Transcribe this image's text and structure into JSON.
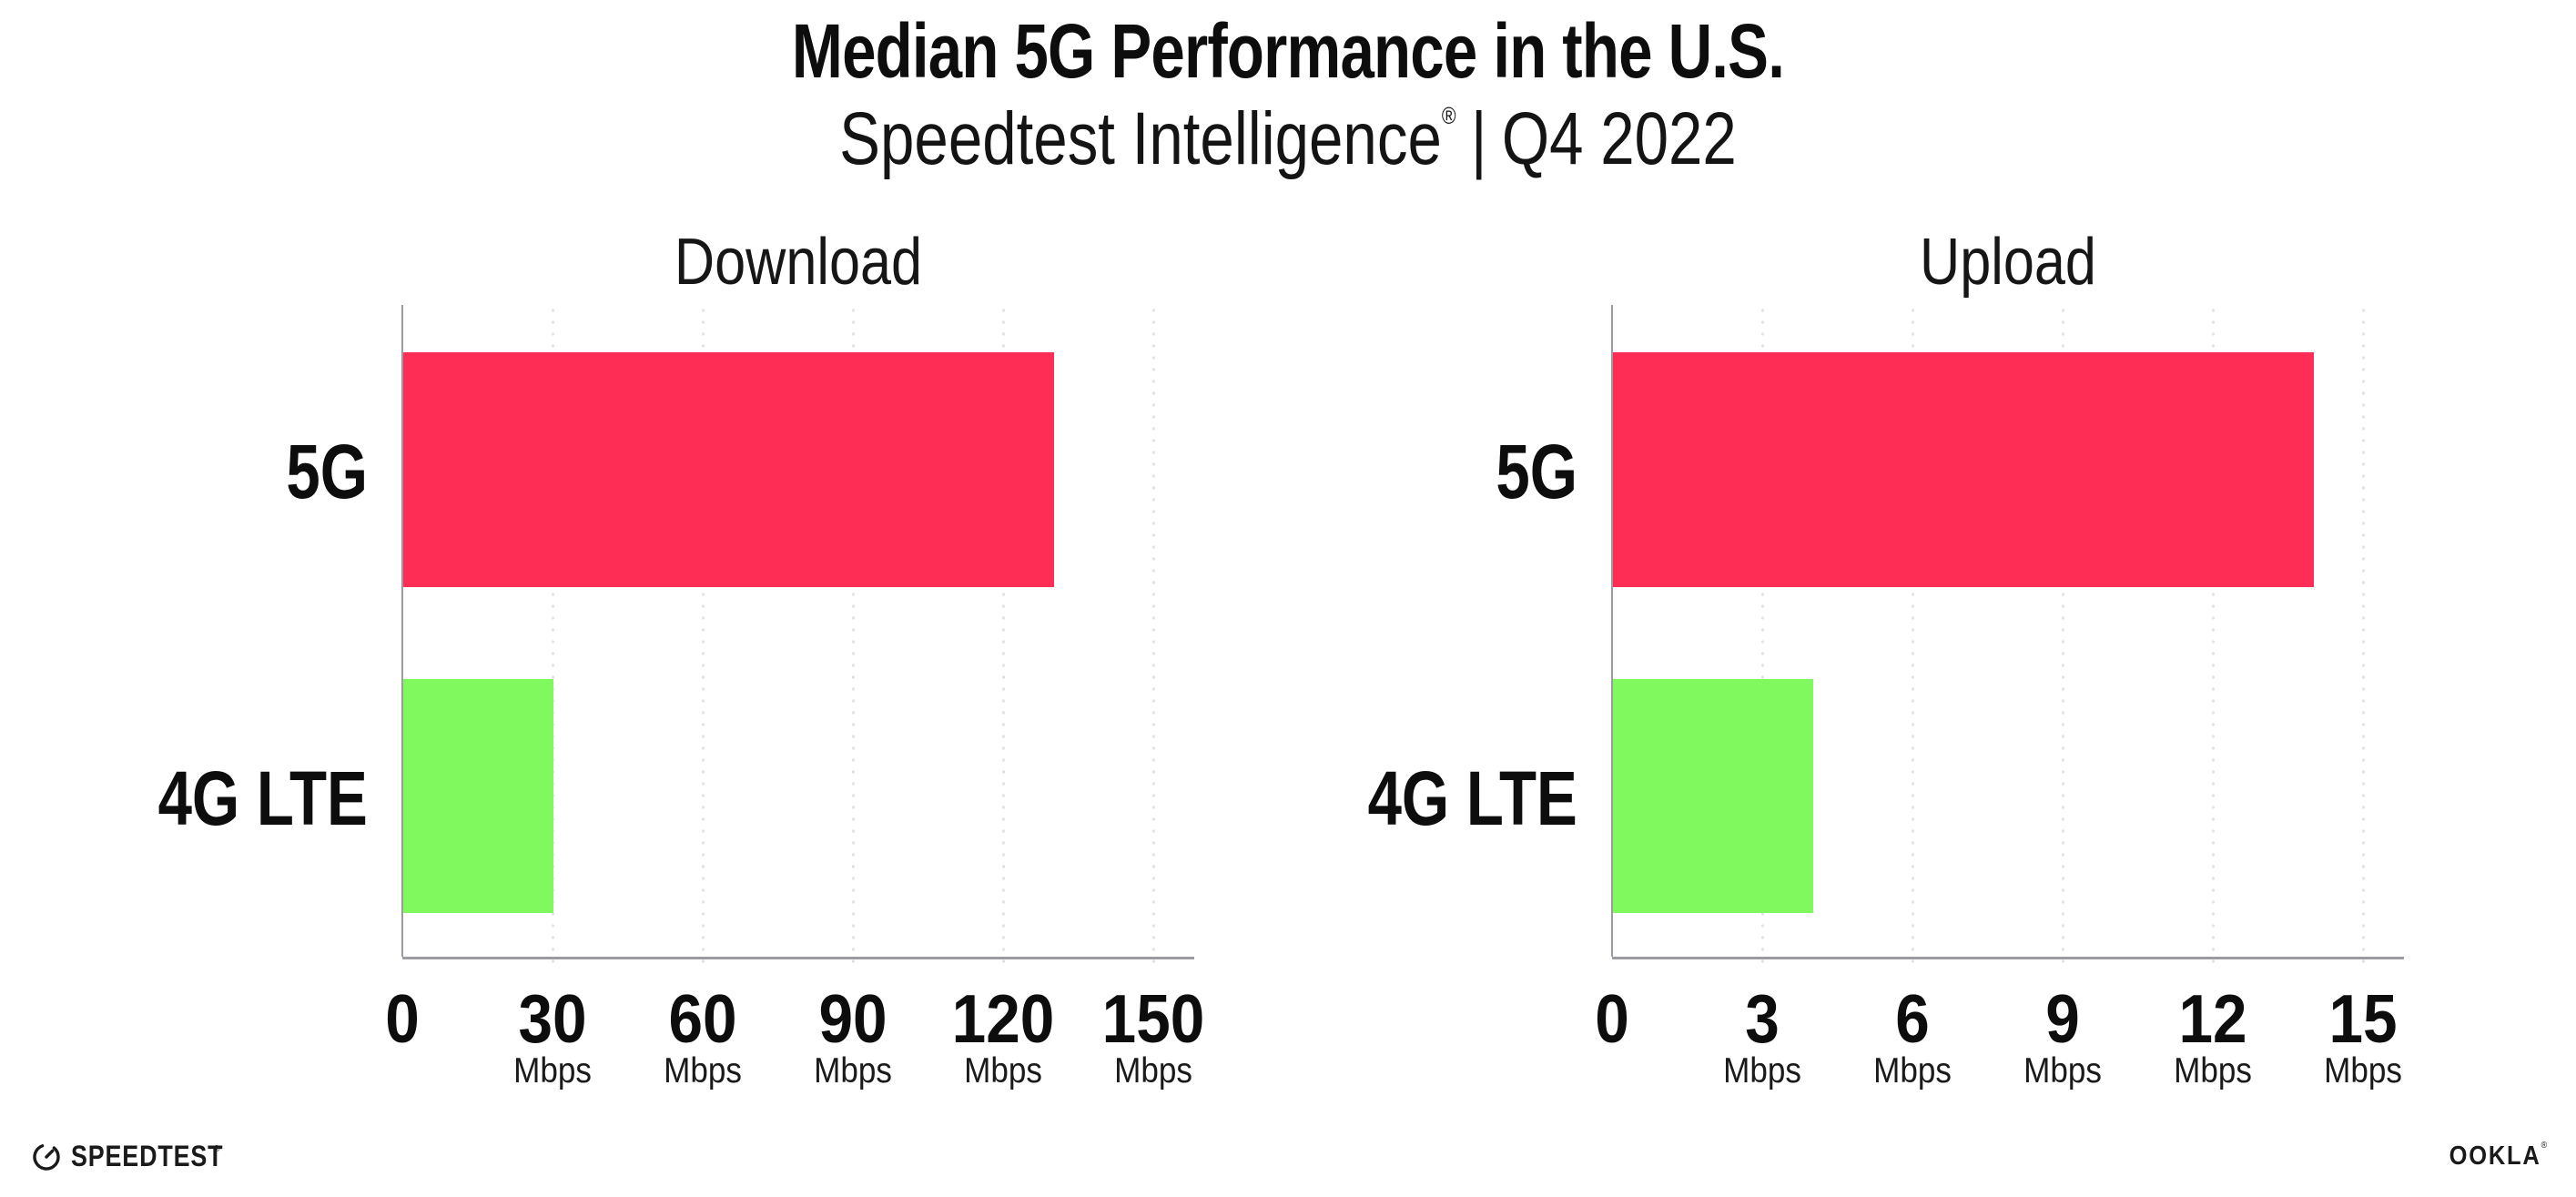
{
  "header": {
    "title": "Median 5G Performance in the U.S.",
    "subtitle": {
      "brand": "Speedtest Intelligence",
      "registered": "®",
      "separator": "|",
      "period": "Q4 2022"
    }
  },
  "chart_data": [
    {
      "type": "bar",
      "orientation": "horizontal",
      "title": "Download",
      "categories": [
        "5G",
        "4G LTE"
      ],
      "values": [
        130,
        30
      ],
      "unit_label": "Mbps",
      "xlim": [
        0,
        150
      ],
      "xticks": [
        0,
        30,
        60,
        90,
        120,
        150
      ],
      "colors": [
        "#FE2D55",
        "#80F95F"
      ],
      "grid": "vertical-dotted",
      "legend": "none"
    },
    {
      "type": "bar",
      "orientation": "horizontal",
      "title": "Upload",
      "categories": [
        "5G",
        "4G LTE"
      ],
      "values": [
        14,
        4
      ],
      "unit_label": "Mbps",
      "xlim": [
        0,
        15
      ],
      "xticks": [
        0,
        3,
        6,
        9,
        12,
        15
      ],
      "colors": [
        "#FE2D55",
        "#80F95F"
      ],
      "grid": "vertical-dotted",
      "legend": "none"
    }
  ],
  "footer": {
    "speedtest": {
      "label": "SPEEDTEST",
      "mark": "®"
    },
    "ookla": {
      "label": "OOKLA",
      "mark": "®"
    }
  },
  "colors": {
    "bar_5g": "#FE2D55",
    "bar_4g_lte": "#80F95F",
    "axis_line": "#9B9BA1",
    "grid_dot": "#E2E2EC",
    "text": "#111111",
    "background": "#FFFFFF"
  }
}
